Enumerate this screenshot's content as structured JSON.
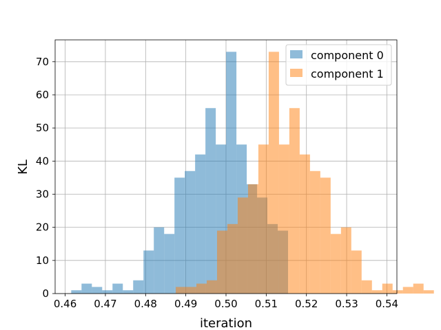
{
  "chart_data": {
    "type": "histogram",
    "title": "",
    "xlabel": "iteration",
    "ylabel": "KL",
    "xlim": [
      0.4575,
      0.5425
    ],
    "ylim": [
      0,
      76.6
    ],
    "xticks": [
      0.46,
      0.47,
      0.48,
      0.49,
      0.5,
      0.51,
      0.52,
      0.53,
      0.54
    ],
    "xtick_labels": [
      "0.46",
      "0.47",
      "0.48",
      "0.49",
      "0.50",
      "0.51",
      "0.52",
      "0.53",
      "0.54"
    ],
    "yticks": [
      0,
      10,
      20,
      30,
      40,
      50,
      60,
      70
    ],
    "ytick_labels": [
      "0",
      "10",
      "20",
      "30",
      "40",
      "50",
      "60",
      "70"
    ],
    "grid": true,
    "legend_position": "top-right",
    "bar_alpha": 0.5,
    "series": [
      {
        "name": "component 0",
        "color": "#1f77b4",
        "bin_start": 0.4615,
        "bin_width": 0.002568,
        "counts": [
          1,
          3,
          2,
          1,
          3,
          1,
          4,
          13,
          20,
          18,
          35,
          37,
          42,
          56,
          45,
          73,
          45,
          33,
          29,
          21,
          19
        ]
      },
      {
        "name": "component 1",
        "color": "#ff7f0e",
        "bin_start": 0.4875,
        "bin_width": 0.002568,
        "counts": [
          2,
          2,
          3,
          4,
          19,
          21,
          29,
          33,
          45,
          73,
          45,
          56,
          42,
          37,
          35,
          18,
          20,
          13,
          4,
          1,
          3,
          1,
          2,
          3,
          1
        ]
      }
    ]
  }
}
